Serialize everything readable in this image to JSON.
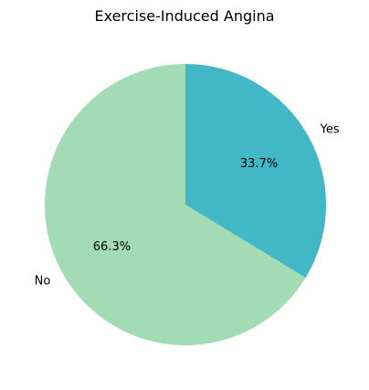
{
  "chart_data": {
    "type": "pie",
    "title": "Exercise-Induced Angina",
    "slices": [
      {
        "label": "No",
        "value": 66.3,
        "percent_label": "66.3%",
        "color": "#a3dbb4"
      },
      {
        "label": "Yes",
        "value": 33.7,
        "percent_label": "33.7%",
        "color": "#42b7c6"
      }
    ],
    "start_angle_deg": 90,
    "direction": "counterclockwise"
  }
}
